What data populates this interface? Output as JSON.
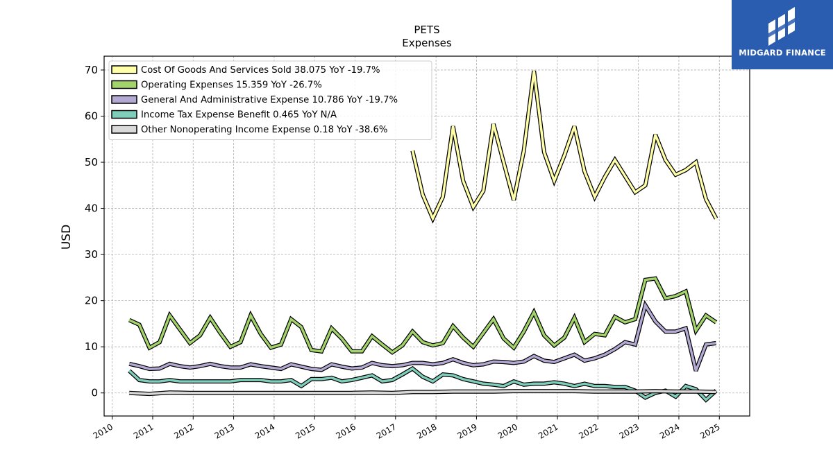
{
  "logo": {
    "text": "MIDGARD FINANCE",
    "background": "#2a5db0"
  },
  "chart_data": {
    "type": "line",
    "title": "PETS",
    "subtitle": "Expenses",
    "ylabel": "USD",
    "xlabel": "",
    "xlim": [
      2009.8,
      2025.75
    ],
    "ylim": [
      -5,
      73
    ],
    "yticks": [
      0,
      10,
      20,
      30,
      40,
      50,
      60,
      70
    ],
    "xticks": [
      "2010",
      "2011",
      "2012",
      "2013",
      "2014",
      "2015",
      "2016",
      "2017",
      "2018",
      "2019",
      "2020",
      "2021",
      "2022",
      "2023",
      "2024",
      "2025"
    ],
    "grid": true,
    "legend_position": "top-left",
    "series": [
      {
        "name": "Cost Of Goods And Services Sold  38.075 YoY -19.7%",
        "color": "#ffffaa",
        "x": [
          2017.42,
          2017.67,
          2017.92,
          2018.17,
          2018.42,
          2018.67,
          2018.92,
          2019.17,
          2019.42,
          2019.67,
          2019.92,
          2020.17,
          2020.42,
          2020.67,
          2020.92,
          2021.17,
          2021.42,
          2021.67,
          2021.92,
          2022.17,
          2022.42,
          2022.67,
          2022.92,
          2023.17,
          2023.42,
          2023.67,
          2023.92,
          2024.17,
          2024.42,
          2024.67,
          2024.92
        ],
        "y": [
          52.5,
          43.0,
          37.8,
          42.5,
          57.8,
          46.0,
          40.3,
          43.8,
          58.3,
          50.0,
          41.8,
          52.5,
          69.8,
          52.2,
          46.0,
          51.5,
          57.8,
          48.0,
          42.5,
          46.8,
          50.5,
          47.0,
          43.5,
          45.0,
          56.0,
          50.5,
          47.3,
          48.3,
          50.0,
          42.0,
          37.8
        ]
      },
      {
        "name": "Operating Expenses  15.359 YoY -26.7%",
        "color": "#a3d36b",
        "x": [
          2010.42,
          2010.67,
          2010.92,
          2011.17,
          2011.42,
          2011.67,
          2011.92,
          2012.17,
          2012.42,
          2012.67,
          2012.92,
          2013.17,
          2013.42,
          2013.67,
          2013.92,
          2014.17,
          2014.42,
          2014.67,
          2014.92,
          2015.17,
          2015.42,
          2015.67,
          2015.92,
          2016.17,
          2016.42,
          2016.67,
          2016.92,
          2017.17,
          2017.42,
          2017.67,
          2017.92,
          2018.17,
          2018.42,
          2018.67,
          2018.92,
          2019.17,
          2019.42,
          2019.67,
          2019.92,
          2020.17,
          2020.42,
          2020.67,
          2020.92,
          2021.17,
          2021.42,
          2021.67,
          2021.92,
          2022.17,
          2022.42,
          2022.67,
          2022.92,
          2023.17,
          2023.42,
          2023.67,
          2023.92,
          2024.17,
          2024.42,
          2024.67,
          2024.92
        ],
        "y": [
          15.8,
          14.8,
          9.8,
          11.0,
          16.8,
          13.8,
          10.8,
          12.5,
          16.3,
          13.0,
          10.0,
          11.0,
          16.8,
          12.8,
          9.8,
          10.5,
          16.0,
          14.3,
          9.3,
          9.0,
          14.0,
          11.8,
          9.0,
          9.0,
          12.3,
          10.5,
          8.8,
          10.3,
          13.3,
          11.0,
          10.3,
          10.8,
          14.5,
          12.0,
          10.0,
          13.0,
          16.0,
          11.8,
          9.8,
          13.3,
          17.5,
          12.5,
          10.3,
          12.0,
          16.3,
          11.0,
          12.8,
          12.5,
          16.5,
          15.3,
          16.0,
          24.5,
          24.8,
          20.5,
          21.0,
          22.0,
          13.5,
          16.8,
          15.3
        ]
      },
      {
        "name": "General And Administrative Expense  10.786 YoY -19.7%",
        "color": "#b3a9d3",
        "x": [
          2010.42,
          2010.67,
          2010.92,
          2011.17,
          2011.42,
          2011.67,
          2011.92,
          2012.17,
          2012.42,
          2012.67,
          2012.92,
          2013.17,
          2013.42,
          2013.67,
          2013.92,
          2014.17,
          2014.42,
          2014.67,
          2014.92,
          2015.17,
          2015.42,
          2015.67,
          2015.92,
          2016.17,
          2016.42,
          2016.67,
          2016.92,
          2017.17,
          2017.42,
          2017.67,
          2017.92,
          2018.17,
          2018.42,
          2018.67,
          2018.92,
          2019.17,
          2019.42,
          2019.67,
          2019.92,
          2020.17,
          2020.42,
          2020.67,
          2020.92,
          2021.17,
          2021.42,
          2021.67,
          2021.92,
          2022.17,
          2022.42,
          2022.67,
          2022.92,
          2023.17,
          2023.42,
          2023.67,
          2023.92,
          2024.17,
          2024.42,
          2024.67,
          2024.92
        ],
        "y": [
          6.3,
          5.8,
          5.2,
          5.3,
          6.3,
          5.8,
          5.5,
          5.8,
          6.3,
          5.8,
          5.5,
          5.5,
          6.2,
          5.8,
          5.5,
          5.2,
          6.2,
          5.7,
          5.2,
          5.0,
          6.2,
          5.7,
          5.3,
          5.5,
          6.5,
          6.0,
          5.8,
          6.0,
          6.5,
          6.5,
          6.2,
          6.5,
          7.3,
          6.5,
          6.0,
          6.2,
          6.8,
          6.7,
          6.5,
          6.8,
          8.0,
          7.0,
          6.7,
          7.5,
          8.3,
          7.0,
          7.5,
          8.3,
          9.5,
          11.0,
          10.5,
          19.0,
          15.5,
          13.3,
          13.3,
          14.0,
          4.8,
          10.5,
          10.8
        ]
      },
      {
        "name": "Income Tax Expense Benefit  0.465 YoY N/A",
        "color": "#7fcdbb",
        "x": [
          2010.42,
          2010.67,
          2010.92,
          2011.17,
          2011.42,
          2011.67,
          2011.92,
          2012.17,
          2012.42,
          2012.67,
          2012.92,
          2013.17,
          2013.42,
          2013.67,
          2013.92,
          2014.17,
          2014.42,
          2014.67,
          2014.92,
          2015.17,
          2015.42,
          2015.67,
          2015.92,
          2016.17,
          2016.42,
          2016.67,
          2016.92,
          2017.17,
          2017.42,
          2017.67,
          2017.92,
          2018.17,
          2018.42,
          2018.67,
          2018.92,
          2019.17,
          2019.42,
          2019.67,
          2019.92,
          2020.17,
          2020.42,
          2020.67,
          2020.92,
          2021.17,
          2021.42,
          2021.67,
          2021.92,
          2022.17,
          2022.42,
          2022.67,
          2022.92,
          2023.17,
          2023.42,
          2023.67,
          2023.92,
          2024.17,
          2024.42,
          2024.67,
          2024.92
        ],
        "y": [
          4.8,
          2.8,
          2.5,
          2.5,
          2.8,
          2.5,
          2.5,
          2.5,
          2.5,
          2.5,
          2.5,
          2.8,
          2.8,
          2.8,
          2.5,
          2.5,
          2.8,
          1.5,
          3.0,
          3.0,
          3.3,
          2.5,
          2.8,
          3.3,
          3.8,
          2.5,
          2.8,
          4.0,
          5.3,
          3.5,
          2.5,
          4.0,
          3.8,
          3.0,
          2.5,
          2.0,
          1.8,
          1.5,
          2.5,
          1.8,
          2.0,
          2.0,
          2.3,
          2.0,
          1.5,
          2.0,
          1.5,
          1.5,
          1.3,
          1.3,
          0.5,
          -1.0,
          0.0,
          0.5,
          -0.8,
          1.5,
          0.8,
          -1.5,
          0.5
        ]
      },
      {
        "name": "Other Nonoperating Income Expense  0.18 YoY -38.6%",
        "color": "#d9d9d9",
        "x": [
          2010.42,
          2010.92,
          2011.42,
          2011.92,
          2012.42,
          2012.92,
          2013.42,
          2013.92,
          2014.42,
          2014.92,
          2015.42,
          2015.92,
          2016.42,
          2016.92,
          2017.42,
          2017.92,
          2018.42,
          2018.92,
          2019.42,
          2019.92,
          2020.42,
          2020.92,
          2021.42,
          2021.92,
          2022.42,
          2022.92,
          2023.42,
          2023.92,
          2024.42,
          2024.92
        ],
        "y": [
          0.0,
          -0.2,
          0.1,
          0.0,
          0.0,
          0.0,
          0.0,
          0.0,
          0.0,
          0.0,
          0.0,
          0.0,
          0.1,
          0.0,
          0.2,
          0.2,
          0.3,
          0.3,
          0.3,
          0.4,
          0.4,
          0.4,
          0.4,
          0.3,
          0.3,
          0.3,
          0.4,
          0.3,
          0.3,
          0.2
        ]
      }
    ]
  }
}
